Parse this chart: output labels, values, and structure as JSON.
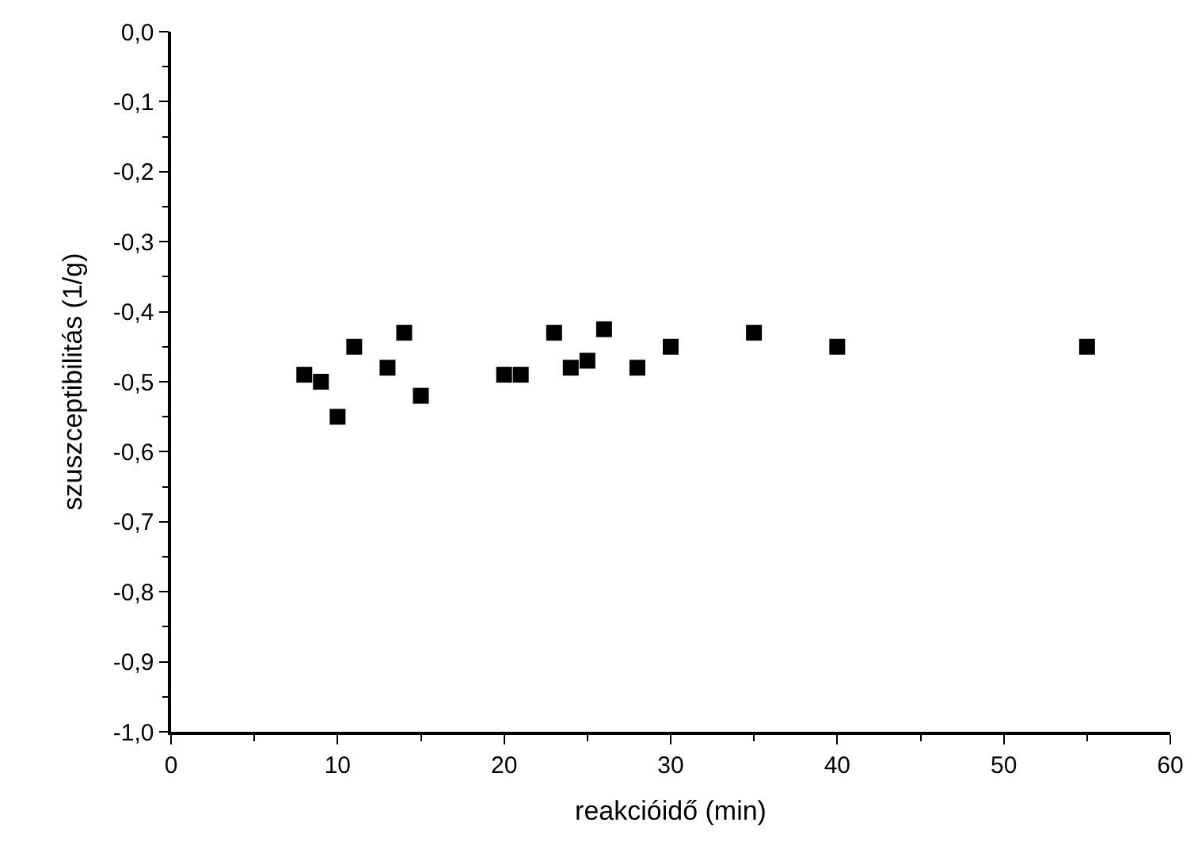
{
  "chart_data": {
    "type": "scatter",
    "xlabel": "reakcióidő (min)",
    "ylabel": "szuszceptibilitás (1/g)",
    "x": [
      8,
      9,
      10,
      11,
      13,
      14,
      15,
      20,
      21,
      23,
      24,
      25,
      26,
      28,
      30,
      35,
      40,
      55
    ],
    "series": [
      {
        "color": "#000000",
        "values": [
          -0.49,
          -0.5,
          -0.55,
          -0.45,
          -0.48,
          -0.43,
          -0.52,
          -0.49,
          -0.49,
          -0.43,
          -0.48,
          -0.47,
          -0.425,
          -0.48,
          -0.45,
          -0.43,
          -0.45,
          -0.45
        ]
      }
    ],
    "xlim": [
      0,
      60
    ],
    "xticks": [
      0,
      10,
      20,
      30,
      40,
      50,
      60
    ],
    "ylim": [
      -1.0,
      0.0
    ],
    "yticks": [
      {
        "value": -1.0,
        "label": "-1,0"
      },
      {
        "value": -0.9,
        "label": "-0,9"
      },
      {
        "value": -0.8,
        "label": "-0,8"
      },
      {
        "value": -0.7,
        "label": "-0,7"
      },
      {
        "value": -0.6,
        "label": "-0,6"
      },
      {
        "value": -0.5,
        "label": "-0,5"
      },
      {
        "value": -0.4,
        "label": "-0,4"
      },
      {
        "value": -0.3,
        "label": "-0,3"
      },
      {
        "value": -0.2,
        "label": "-0,2"
      },
      {
        "value": -0.1,
        "label": "-0,1"
      },
      {
        "value": 0.0,
        "label": "0,0"
      }
    ],
    "marker": "square"
  }
}
